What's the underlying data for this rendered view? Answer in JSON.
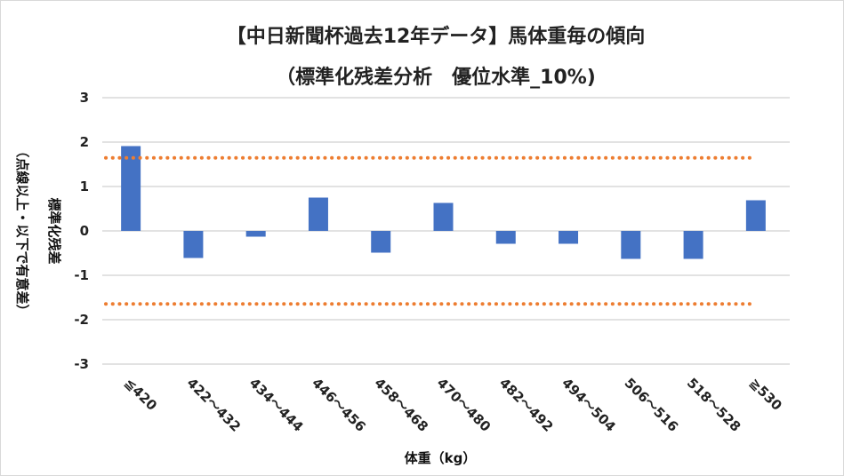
{
  "chart_data": {
    "type": "bar",
    "title": "【中日新聞杯過去12年データ】馬体重毎の傾向",
    "subtitle": "（標準化残差分析　優位水準_10%)",
    "xlabel": "体重（kg）",
    "ylabel": "標準化残差",
    "ylabel_note": "（点線以上・以下で有意差）",
    "categories": [
      "≦420",
      "422～432",
      "434～444",
      "446～456",
      "458～468",
      "470～480",
      "482～492",
      "494～504",
      "506～516",
      "518～528",
      "≧530"
    ],
    "values": [
      1.91,
      -0.61,
      -0.13,
      0.75,
      -0.49,
      0.63,
      -0.29,
      -0.29,
      -0.63,
      -0.63,
      0.69
    ],
    "ylim": [
      -3,
      3
    ],
    "yticks": [
      3,
      2,
      1,
      0,
      -1,
      -2,
      -3
    ],
    "threshold_lines": [
      1.645,
      -1.645
    ],
    "grid": true,
    "colors": {
      "bar": "#4472C4",
      "threshold": "#ED7D31",
      "grid": "#D9D9D9"
    }
  }
}
